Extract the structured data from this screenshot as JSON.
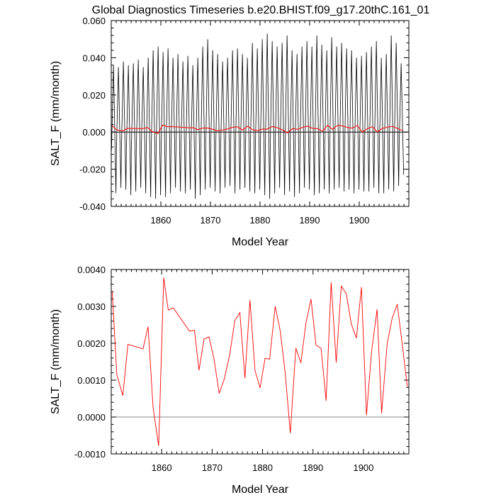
{
  "title": "Global Diagnostics Timeseries b.e20.BHIST.f09_g17.20thC.161_01",
  "chart_data": [
    {
      "type": "line",
      "xlabel": "Model Year",
      "ylabel": "SALT_F (mm/month)",
      "xlim": [
        1850,
        1910
      ],
      "ylim": [
        -0.04,
        0.06
      ],
      "x_ticks": [
        1860,
        1870,
        1880,
        1890,
        1900
      ],
      "x_tick_labels": [
        "1860",
        "1870",
        "1880",
        "1890",
        "1900"
      ],
      "y_ticks": [
        -0.04,
        -0.02,
        0.0,
        0.02,
        0.04,
        0.06
      ],
      "y_tick_labels": [
        "-0.040",
        "-0.020",
        "0.000",
        "0.020",
        "0.040",
        "0.060"
      ],
      "reference_line": 0,
      "monthly_series": {
        "color": "#000000",
        "start_year": 1850,
        "maxima": [
          0.036,
          0.035,
          0.038,
          0.036,
          0.037,
          0.039,
          0.035,
          0.04,
          0.044,
          0.046,
          0.043,
          0.045,
          0.04,
          0.042,
          0.038,
          0.041,
          0.036,
          0.04,
          0.046,
          0.05,
          0.044,
          0.042,
          0.038,
          0.04,
          0.044,
          0.045,
          0.042,
          0.04,
          0.048,
          0.045,
          0.05,
          0.053,
          0.049,
          0.046,
          0.048,
          0.052,
          0.044,
          0.042,
          0.046,
          0.049,
          0.046,
          0.052,
          0.047,
          0.044,
          0.051,
          0.046,
          0.048,
          0.045,
          0.044,
          0.04,
          0.041,
          0.043,
          0.046,
          0.049,
          0.04,
          0.042,
          0.052,
          0.048,
          0.037
        ],
        "minima": [
          -0.033,
          -0.03,
          -0.031,
          -0.034,
          -0.032,
          -0.03,
          -0.033,
          -0.035,
          -0.036,
          -0.034,
          -0.035,
          -0.033,
          -0.03,
          -0.032,
          -0.033,
          -0.031,
          -0.036,
          -0.034,
          -0.031,
          -0.03,
          -0.032,
          -0.033,
          -0.03,
          -0.029,
          -0.033,
          -0.031,
          -0.03,
          -0.032,
          -0.033,
          -0.031,
          -0.034,
          -0.036,
          -0.033,
          -0.03,
          -0.034,
          -0.032,
          -0.035,
          -0.033,
          -0.03,
          -0.031,
          -0.034,
          -0.033,
          -0.031,
          -0.033,
          -0.031,
          -0.03,
          -0.032,
          -0.031,
          -0.033,
          -0.031,
          -0.032,
          -0.032,
          -0.03,
          -0.033,
          -0.033,
          -0.031,
          -0.032,
          -0.029,
          -0.023
        ]
      },
      "annual_series": {
        "color": "#ff0000",
        "ref": "annual_mean"
      }
    },
    {
      "type": "line",
      "xlabel": "Model Year",
      "ylabel": "SALT_F (mm/month)",
      "xlim": [
        1850,
        1909
      ],
      "ylim": [
        -0.001,
        0.004
      ],
      "x_ticks": [
        1860,
        1870,
        1880,
        1890,
        1900
      ],
      "x_tick_labels": [
        "1860",
        "1870",
        "1880",
        "1890",
        "1900"
      ],
      "y_ticks": [
        -0.001,
        0.0,
        0.001,
        0.002,
        0.003,
        0.004
      ],
      "y_tick_labels": [
        "-0.0010",
        "0.0000",
        "0.0010",
        "0.0020",
        "0.0030",
        "0.0040"
      ],
      "reference_line": 0,
      "series": [
        {
          "color": "#ff0000",
          "x": [
            1850.2,
            1851.1,
            1852.3,
            1853.3,
            1856.3,
            1857.3,
            1858.3,
            1859.4,
            1860.4,
            1861.3,
            1862.3,
            1865.5,
            1866.5,
            1867.4,
            1868.4,
            1869.4,
            1870.4,
            1871.4,
            1872.4,
            1873.5,
            1874.5,
            1875.5,
            1876.5,
            1877.5,
            1878.5,
            1879.5,
            1880.5,
            1881.4,
            1882.5,
            1883.5,
            1884.5,
            1885.5,
            1886.6,
            1887.6,
            1888.6,
            1889.6,
            1890.6,
            1891.6,
            1892.6,
            1893.6,
            1894.6,
            1895.6,
            1896.6,
            1897.6,
            1898.6,
            1899.6,
            1900.6,
            1901.6,
            1902.7,
            1903.6,
            1904.7,
            1905.7,
            1906.7,
            1907.7,
            1908.7
          ],
          "y": [
            0.0034,
            0.00115,
            0.00058,
            0.00197,
            0.00185,
            0.00245,
            0.00025,
            -0.00078,
            0.00378,
            0.0029,
            0.00296,
            0.00233,
            0.00235,
            0.00127,
            0.00212,
            0.00217,
            0.00155,
            0.00064,
            0.00103,
            0.0017,
            0.00262,
            0.00283,
            0.00105,
            0.00317,
            0.00126,
            0.00079,
            0.00159,
            0.00157,
            0.003,
            0.00234,
            0.00118,
            -0.00044,
            0.00187,
            0.00147,
            0.00255,
            0.0032,
            0.00195,
            0.00186,
            0.00044,
            0.00365,
            0.00148,
            0.00355,
            0.00334,
            0.00252,
            0.00214,
            0.00352,
            5e-05,
            0.00176,
            0.00292,
            0.0001,
            0.00199,
            0.00268,
            0.00306,
            0.00196,
            0.00082
          ]
        }
      ]
    }
  ]
}
